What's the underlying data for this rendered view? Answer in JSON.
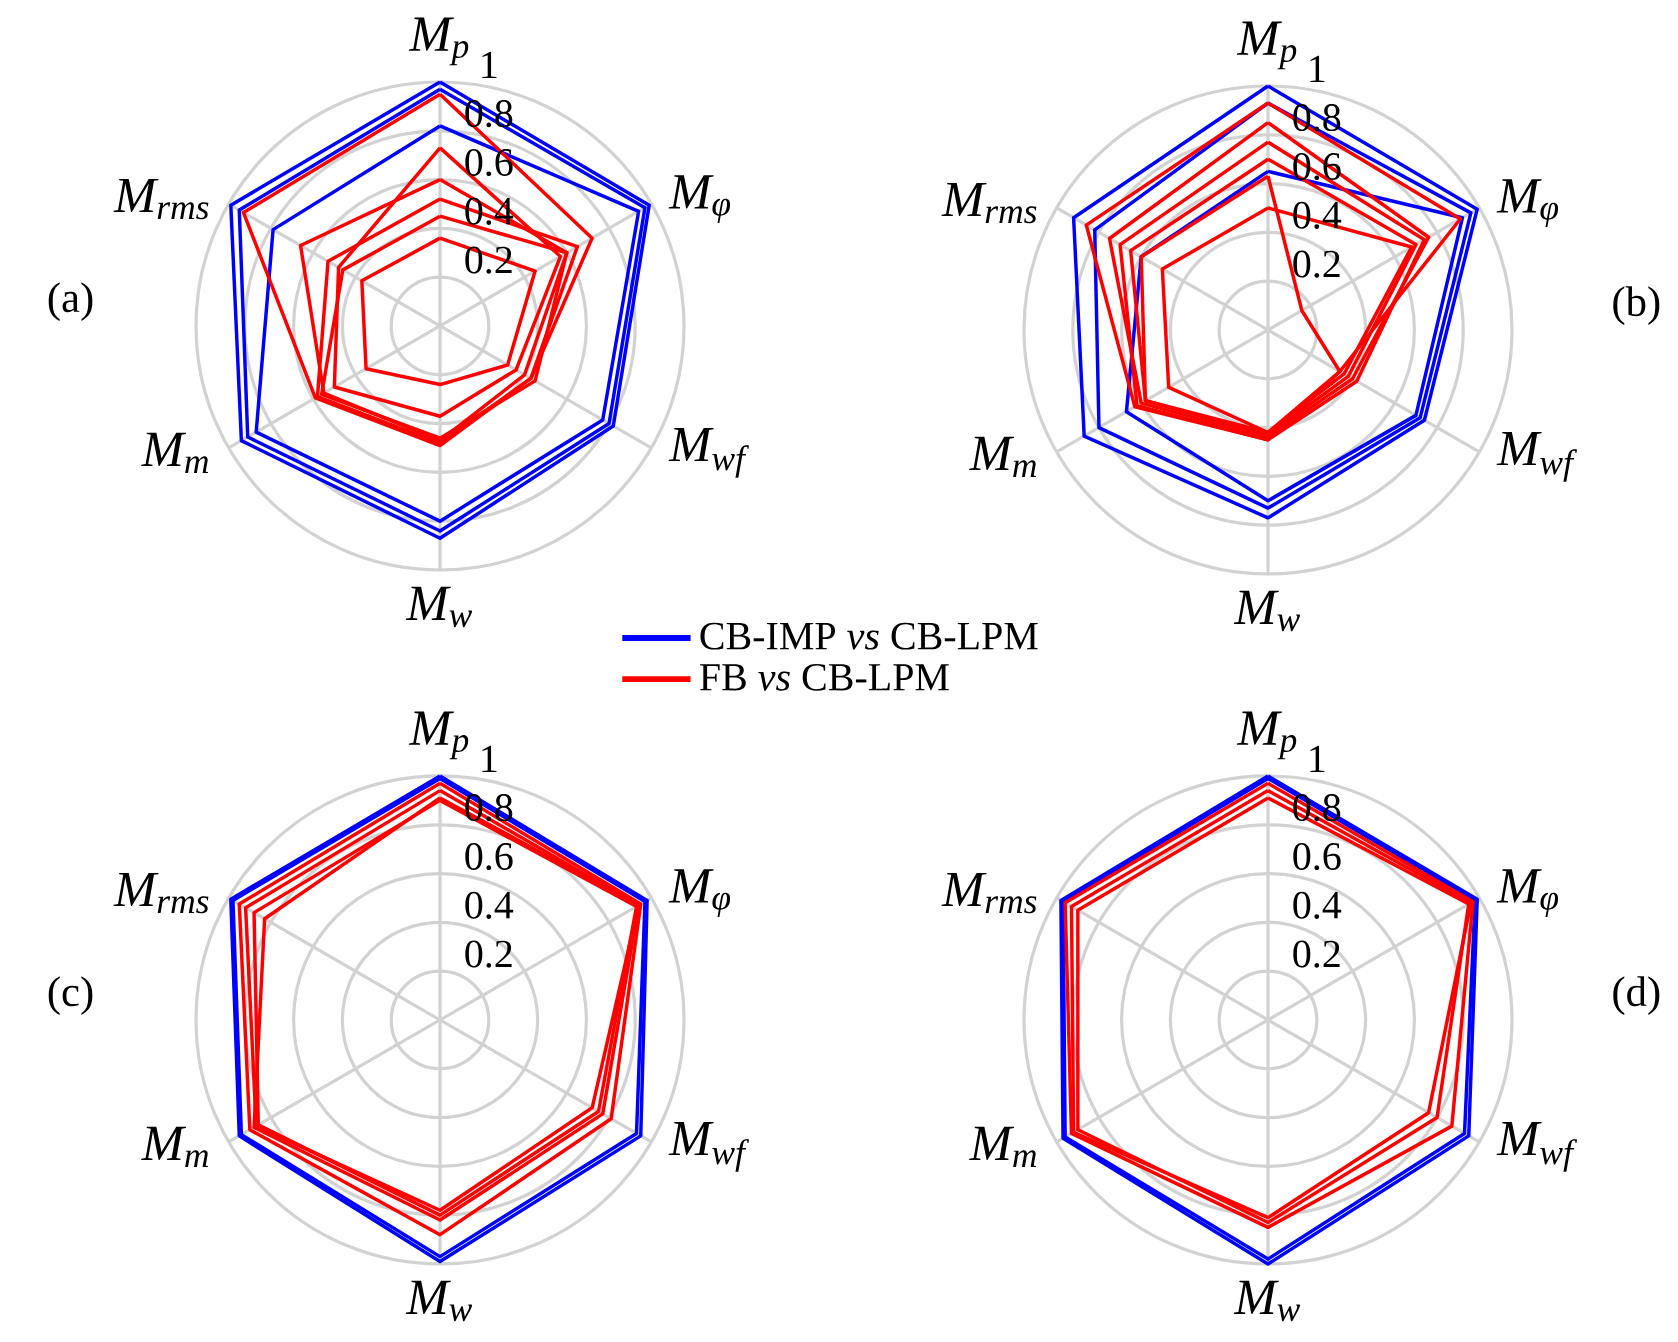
{
  "chart_data": [
    {
      "type": "radar",
      "title": "(a)",
      "categories": [
        "M$_{p}$",
        "M$_{φ}$",
        "M$_{wf}$",
        "M$_{w}$",
        "M$_{m}$",
        "M$_{rms}$"
      ],
      "ylim": [
        0,
        1
      ],
      "yticks": [
        0.2,
        0.4,
        0.6,
        0.8,
        1
      ],
      "grid": true,
      "legend": "bottom right",
      "series": [
        {
          "name": "CB-IMP *vs* CB-LPM",
          "color": "#0000ff",
          "values": [
            1.0,
            0.99,
            0.82,
            0.87,
            0.94,
            0.99
          ]
        },
        {
          "color": "#0000ff",
          "values": [
            0.97,
            0.97,
            0.8,
            0.84,
            0.91,
            0.95
          ]
        },
        {
          "color": "#0000ff",
          "values": [
            0.82,
            0.94,
            0.77,
            0.8,
            0.87,
            0.79
          ]
        },
        {
          "name": "FB *vs* CB-LPM",
          "color": "#ff0000",
          "values": [
            0.95,
            0.72,
            0.43,
            0.49,
            0.59,
            0.93
          ]
        },
        {
          "color": "#ff0000",
          "values": [
            0.36,
            0.45,
            0.32,
            0.24,
            0.35,
            0.37
          ]
        },
        {
          "color": "#ff0000",
          "values": [
            0.52,
            0.65,
            0.43,
            0.48,
            0.58,
            0.53
          ]
        },
        {
          "color": "#ff0000",
          "values": [
            0.6,
            0.6,
            0.4,
            0.47,
            0.55,
            0.66
          ]
        },
        {
          "color": "#ff0000",
          "values": [
            0.73,
            0.57,
            0.36,
            0.37,
            0.5,
            0.48
          ]
        },
        {
          "color": "#ff0000",
          "values": [
            0.45,
            0.6,
            0.45,
            0.46,
            0.56,
            0.46
          ]
        }
      ]
    },
    {
      "type": "radar",
      "title": "(b)",
      "categories": [
        "M$_{p}$",
        "M$_{φ}$",
        "M$_{wf}$",
        "M$_{w}$",
        "M$_{m}$",
        "M$_{rms}$"
      ],
      "ylim": [
        0,
        1
      ],
      "yticks": [
        0.2,
        0.4,
        0.6,
        0.8,
        1
      ],
      "grid": true,
      "series": [
        {
          "color": "#0000ff",
          "values": [
            1.0,
            0.99,
            0.74,
            0.77,
            0.87,
            0.92
          ]
        },
        {
          "color": "#0000ff",
          "values": [
            0.93,
            0.96,
            0.72,
            0.73,
            0.8,
            0.82
          ]
        },
        {
          "color": "#0000ff",
          "values": [
            0.65,
            0.92,
            0.7,
            0.7,
            0.67,
            0.6
          ]
        },
        {
          "color": "#ff0000",
          "values": [
            0.93,
            0.91,
            0.34,
            0.45,
            0.63,
            0.86
          ]
        },
        {
          "color": "#ff0000",
          "values": [
            0.85,
            0.76,
            0.4,
            0.44,
            0.6,
            0.75
          ]
        },
        {
          "color": "#ff0000",
          "values": [
            0.7,
            0.7,
            0.38,
            0.43,
            0.58,
            0.65
          ]
        },
        {
          "color": "#ff0000",
          "values": [
            0.63,
            0.16,
            0.34,
            0.42,
            0.58,
            0.6
          ]
        },
        {
          "color": "#ff0000",
          "values": [
            0.5,
            0.68,
            0.36,
            0.42,
            0.47,
            0.5
          ]
        },
        {
          "color": "#ff0000",
          "values": [
            0.77,
            0.74,
            0.42,
            0.45,
            0.62,
            0.7
          ]
        }
      ]
    },
    {
      "type": "radar",
      "title": "(c)",
      "categories": [
        "M$_{p}$",
        "M$_{φ}$",
        "M$_{wf}$",
        "M$_{w}$",
        "M$_{m}$",
        "M$_{rms}$"
      ],
      "ylim": [
        0,
        1
      ],
      "yticks": [
        0.2,
        0.4,
        0.6,
        0.8,
        1
      ],
      "grid": true,
      "series": [
        {
          "color": "#0000ff",
          "values": [
            1.0,
            0.98,
            0.95,
            0.99,
            0.95,
            0.99
          ]
        },
        {
          "color": "#0000ff",
          "values": [
            0.99,
            0.97,
            0.93,
            0.97,
            0.94,
            0.98
          ]
        },
        {
          "color": "#ff0000",
          "values": [
            0.97,
            0.95,
            0.81,
            0.88,
            0.9,
            0.95
          ]
        },
        {
          "color": "#ff0000",
          "values": [
            0.94,
            0.94,
            0.72,
            0.78,
            0.87,
            0.92
          ]
        },
        {
          "color": "#ff0000",
          "values": [
            0.9,
            0.93,
            0.75,
            0.8,
            0.86,
            0.88
          ]
        },
        {
          "color": "#ff0000",
          "values": [
            0.91,
            0.94,
            0.77,
            0.82,
            0.88,
            0.83
          ]
        }
      ]
    },
    {
      "type": "radar",
      "title": "(d)",
      "categories": [
        "M$_{p}$",
        "M$_{φ}$",
        "M$_{wf}$",
        "M$_{w}$",
        "M$_{m}$",
        "M$_{rms}$"
      ],
      "ylim": [
        0,
        1
      ],
      "yticks": [
        0.2,
        0.4,
        0.6,
        0.8,
        1
      ],
      "grid": true,
      "series": [
        {
          "color": "#0000ff",
          "values": [
            1.0,
            0.99,
            0.95,
            1.0,
            0.97,
            0.98
          ]
        },
        {
          "color": "#0000ff",
          "values": [
            0.99,
            0.98,
            0.93,
            0.98,
            0.96,
            0.97
          ]
        },
        {
          "color": "#ff0000",
          "values": [
            0.97,
            0.97,
            0.87,
            0.85,
            0.93,
            0.96
          ]
        },
        {
          "color": "#ff0000",
          "values": [
            0.94,
            0.96,
            0.76,
            0.81,
            0.92,
            0.93
          ]
        },
        {
          "color": "#ff0000",
          "values": [
            0.91,
            0.95,
            0.8,
            0.83,
            0.9,
            0.9
          ]
        }
      ]
    }
  ]
}
